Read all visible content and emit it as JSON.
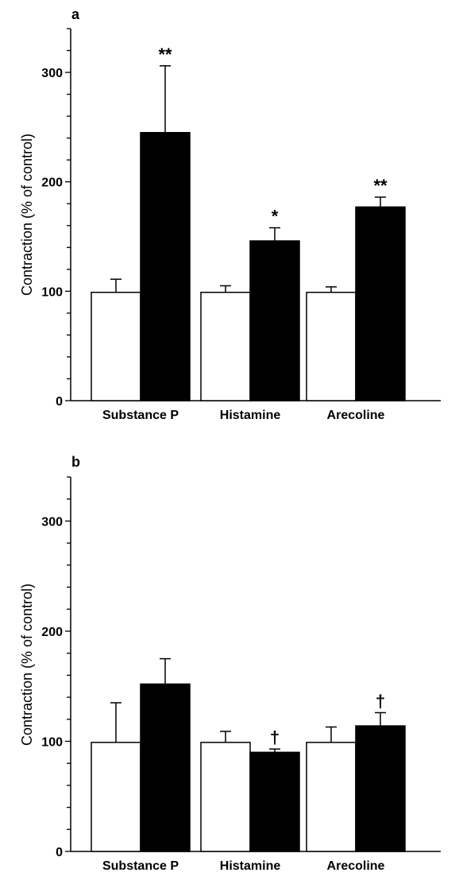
{
  "chart_data": [
    {
      "panel": "a",
      "type": "bar",
      "ylabel": "Contraction (% of control)",
      "ylim": [
        0,
        340
      ],
      "yticks": [
        0,
        100,
        200,
        300
      ],
      "grid": false,
      "categories": [
        "Substance P",
        "Histamine",
        "Arecoline"
      ],
      "series": [
        {
          "fill": "#ffffff",
          "values": [
            99,
            99,
            99
          ],
          "errors": [
            12,
            6,
            5
          ]
        },
        {
          "fill": "#000000",
          "values": [
            245,
            146,
            177
          ],
          "errors": [
            61,
            12,
            9
          ]
        }
      ],
      "annotations": [
        "**",
        "*",
        "**"
      ]
    },
    {
      "panel": "b",
      "type": "bar",
      "ylabel": "Contraction (% of control)",
      "ylim": [
        0,
        340
      ],
      "yticks": [
        0,
        100,
        200,
        300
      ],
      "grid": false,
      "categories": [
        "Substance P",
        "Histamine",
        "Arecoline"
      ],
      "series": [
        {
          "fill": "#ffffff",
          "values": [
            99,
            99,
            99
          ],
          "errors": [
            36,
            10,
            14
          ]
        },
        {
          "fill": "#000000",
          "values": [
            152,
            90,
            114
          ],
          "errors": [
            23,
            3,
            12
          ]
        }
      ],
      "annotations": [
        "",
        "†",
        "†"
      ]
    }
  ]
}
